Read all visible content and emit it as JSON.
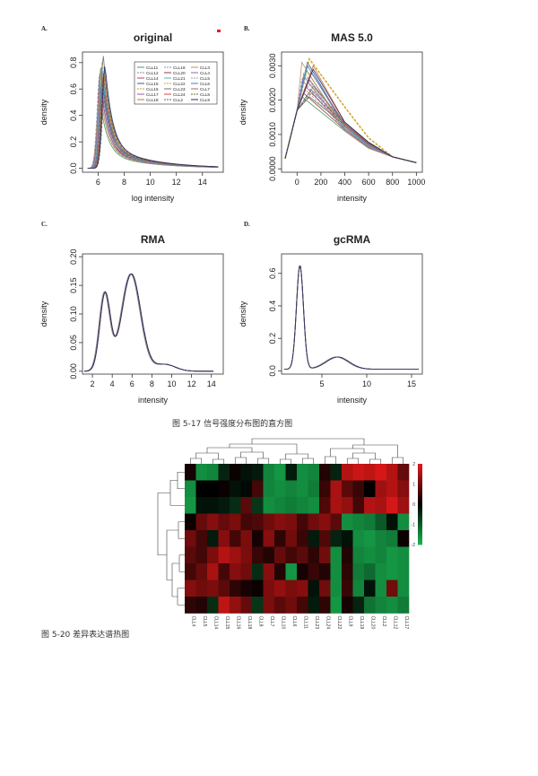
{
  "panels": [
    {
      "letter": "A.",
      "title": "original",
      "xlabel": "log intensity",
      "ylabel": "density",
      "xticks": [
        "6",
        "8",
        "10",
        "12",
        "14"
      ],
      "yticks": [
        "0.0",
        "0.2",
        "0.4",
        "0.6",
        "0.8"
      ]
    },
    {
      "letter": "B.",
      "title": "MAS 5.0",
      "xlabel": "intensity",
      "ylabel": "density",
      "xticks": [
        "0",
        "200",
        "400",
        "600",
        "800",
        "1000"
      ],
      "yticks": [
        "0.0000",
        "0.0010",
        "0.0020",
        "0.0030"
      ]
    },
    {
      "letter": "C.",
      "title": "RMA",
      "xlabel": "intensity",
      "ylabel": "density",
      "xticks": [
        "2",
        "4",
        "6",
        "8",
        "10",
        "12",
        "14"
      ],
      "yticks": [
        "0.00",
        "0.05",
        "0.10",
        "0.15",
        "0.20"
      ]
    },
    {
      "letter": "D.",
      "title": "gcRMA",
      "xlabel": "intensity",
      "ylabel": "density",
      "xticks": [
        "5",
        "10",
        "15"
      ],
      "yticks": [
        "0.0",
        "0.2",
        "0.4",
        "0.6"
      ]
    }
  ],
  "legend": {
    "columns": [
      [
        "CLL11",
        "CLL12",
        "CLL14",
        "CLL15",
        "CLL16",
        "CLL17",
        "CLL18"
      ],
      [
        "CLL18",
        "CLL20",
        "CLL21",
        "CLL22",
        "CLL23",
        "CLL24",
        "CLL2"
      ],
      [
        "CLL3",
        "CLL4",
        "CLL5",
        "CLL6",
        "CLL7",
        "CLL8",
        "CLL9"
      ]
    ]
  },
  "series_colors": [
    "#4a9a5a",
    "#888888",
    "#c04060",
    "#3a5a9a",
    "#c8a020",
    "#a05a9a",
    "#d07030",
    "#6a9ad0",
    "#9a3a3a",
    "#5ab0b0",
    "#b0b040",
    "#707070",
    "#d04040",
    "#4a7a4a",
    "#c09060",
    "#8a6ab0",
    "#a0a0a0",
    "#3a8ac0",
    "#b06060",
    "#6a6a2a",
    "#2a2a6a"
  ],
  "caption_517": "图 5-17  信号强度分布图的直方图",
  "caption_520": "图 5-20  差异表达谱热图",
  "heatmap": {
    "columns": [
      "CLL4",
      "CLL5",
      "CLL14",
      "CLL15",
      "CLL16",
      "CLL18",
      "CLL8",
      "CLL7",
      "CLL10",
      "CLL6",
      "CLL11",
      "CLL23",
      "CLL24",
      "CLL22",
      "CLL9",
      "CLL19",
      "CLL20",
      "CLL2",
      "CLL12",
      "CLL17"
    ],
    "row_labels": [
      "",
      "",
      "",
      "",
      "",
      "",
      "",
      "",
      ""
    ],
    "scale_ticks": [
      "2",
      "1",
      "0",
      "-1",
      "-2"
    ],
    "colors": {
      "high": "#e01818",
      "mid": "#000000",
      "low": "#18b050"
    },
    "values": [
      [
        0.2,
        -1.6,
        -1.5,
        -0.4,
        0.1,
        -0.2,
        -0.3,
        -1.5,
        -1.7,
        -0.3,
        -1.6,
        -1.5,
        0.3,
        -0.4,
        1.6,
        1.8,
        1.7,
        1.9,
        1.6,
        0.9
      ],
      [
        -1.6,
        0.0,
        0.0,
        0.1,
        -0.2,
        -0.1,
        0.6,
        -1.5,
        -1.6,
        -1.5,
        -1.6,
        -1.4,
        0.5,
        1.5,
        0.8,
        0.5,
        0.0,
        1.4,
        1.6,
        1.2
      ],
      [
        -1.7,
        -0.2,
        -0.2,
        -0.3,
        -0.5,
        0.8,
        -0.6,
        -1.6,
        -1.5,
        -1.4,
        -1.5,
        -1.6,
        0.7,
        1.5,
        1.3,
        0.6,
        1.6,
        1.5,
        1.9,
        1.4
      ],
      [
        0.1,
        0.9,
        1.2,
        0.9,
        1.1,
        0.6,
        0.7,
        1.0,
        1.2,
        1.1,
        0.6,
        1.0,
        1.2,
        0.8,
        -1.6,
        -1.5,
        -1.4,
        -1.0,
        -0.2,
        -1.6
      ],
      [
        1.0,
        0.6,
        -0.3,
        1.2,
        0.6,
        1.1,
        0.2,
        1.2,
        0.4,
        1.0,
        0.5,
        -0.3,
        0.7,
        -0.4,
        -0.2,
        -1.6,
        -1.7,
        -1.5,
        -1.4,
        0.1
      ],
      [
        0.8,
        0.6,
        1.1,
        1.6,
        1.4,
        1.1,
        0.5,
        0.3,
        0.9,
        0.6,
        0.8,
        0.4,
        1.0,
        -1.6,
        0.3,
        -1.5,
        -1.6,
        -1.5,
        -1.7,
        -1.6
      ],
      [
        0.6,
        0.9,
        1.5,
        0.6,
        1.2,
        1.0,
        -0.5,
        1.2,
        0.3,
        -1.7,
        0.2,
        0.5,
        0.3,
        -1.6,
        0.4,
        -1.4,
        -1.2,
        -1.6,
        -1.7,
        -1.6
      ],
      [
        1.2,
        1.0,
        1.1,
        0.8,
        0.4,
        0.2,
        0.1,
        1.1,
        1.3,
        1.1,
        1.2,
        -0.2,
        1.0,
        -1.6,
        0.5,
        -1.5,
        -0.2,
        -1.6,
        1.0,
        -1.6
      ],
      [
        0.4,
        0.3,
        -0.5,
        1.7,
        1.3,
        0.9,
        -0.6,
        1.1,
        0.8,
        1.0,
        0.6,
        -0.3,
        0.4,
        -1.7,
        0.2,
        -0.4,
        -1.3,
        -1.5,
        -1.6,
        -1.4
      ]
    ]
  }
}
